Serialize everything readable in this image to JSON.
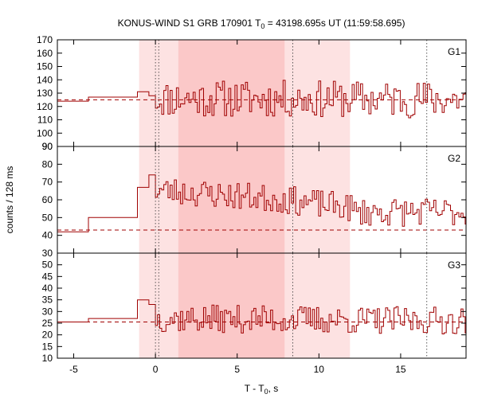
{
  "chart_data": {
    "type": "line",
    "title_main": "KONUS-WIND S1 GRB 170901 T",
    "title_sub": "0",
    "title_rest": " = 43198.695s UT (11:59:58.695)",
    "xlabel_main": "T - T",
    "xlabel_sub": "0",
    "xlabel_rest": ", s",
    "ylabel": "counts / 128 ms",
    "xlim": [
      -6,
      19
    ],
    "xticks": [
      -5,
      0,
      5,
      10,
      15
    ],
    "xtick_labels": [
      "-5",
      "0",
      "5",
      "10",
      "15"
    ],
    "line_color": "#a00000",
    "shading": {
      "light_color": "#fde2e2",
      "dark_color": "#fbc8c8",
      "light_range": [
        -1.0,
        11.9
      ],
      "dark_range": [
        1.4,
        7.9
      ]
    },
    "vertical_markers": [
      0.0,
      0.2,
      8.4,
      16.6
    ],
    "panels": [
      {
        "label": "G1",
        "ylim": [
          90,
          170
        ],
        "yticks": [
          90,
          100,
          110,
          120,
          130,
          140,
          150,
          160,
          170
        ],
        "ytick_labels": [
          "90",
          "100",
          "110",
          "120",
          "130",
          "140",
          "150",
          "160",
          "170"
        ],
        "background": 125,
        "pre_steps": [
          {
            "x0": -6.0,
            "x1": -4.1,
            "y": 124
          },
          {
            "x0": -4.1,
            "x1": -1.1,
            "y": 127
          },
          {
            "x0": -1.1,
            "x1": -0.4,
            "y": 131
          },
          {
            "x0": -0.4,
            "x1": 0.0,
            "y": 128
          }
        ],
        "main_mean": 126,
        "main_amp": 14,
        "seed": 11
      },
      {
        "label": "G2",
        "ylim": [
          30,
          90
        ],
        "yticks": [
          30,
          40,
          50,
          60,
          70,
          80,
          90
        ],
        "ytick_labels": [
          "30",
          "40",
          "50",
          "60",
          "70",
          "80",
          "90"
        ],
        "background": 43,
        "pre_steps": [
          {
            "x0": -6.0,
            "x1": -4.1,
            "y": 42
          },
          {
            "x0": -4.1,
            "x1": -1.1,
            "y": 50
          },
          {
            "x0": -1.1,
            "x1": -0.4,
            "y": 67
          },
          {
            "x0": -0.4,
            "x1": 0.0,
            "y": 74
          }
        ],
        "main_mean": 52,
        "main_amp": 8,
        "seed": 23
      },
      {
        "label": "G3",
        "ylim": [
          10,
          55
        ],
        "yticks": [
          10,
          15,
          20,
          25,
          30,
          35,
          40,
          45,
          50
        ],
        "ytick_labels": [
          "10",
          "15",
          "20",
          "25",
          "30",
          "35",
          "40",
          "45",
          "50"
        ],
        "background": 25.5,
        "pre_steps": [
          {
            "x0": -6.0,
            "x1": -4.1,
            "y": 25.5
          },
          {
            "x0": -4.1,
            "x1": -1.1,
            "y": 27
          },
          {
            "x0": -1.1,
            "x1": -0.4,
            "y": 35
          },
          {
            "x0": -0.4,
            "x1": 0.0,
            "y": 33
          }
        ],
        "main_mean": 27,
        "main_amp": 6,
        "seed": 37
      }
    ]
  }
}
